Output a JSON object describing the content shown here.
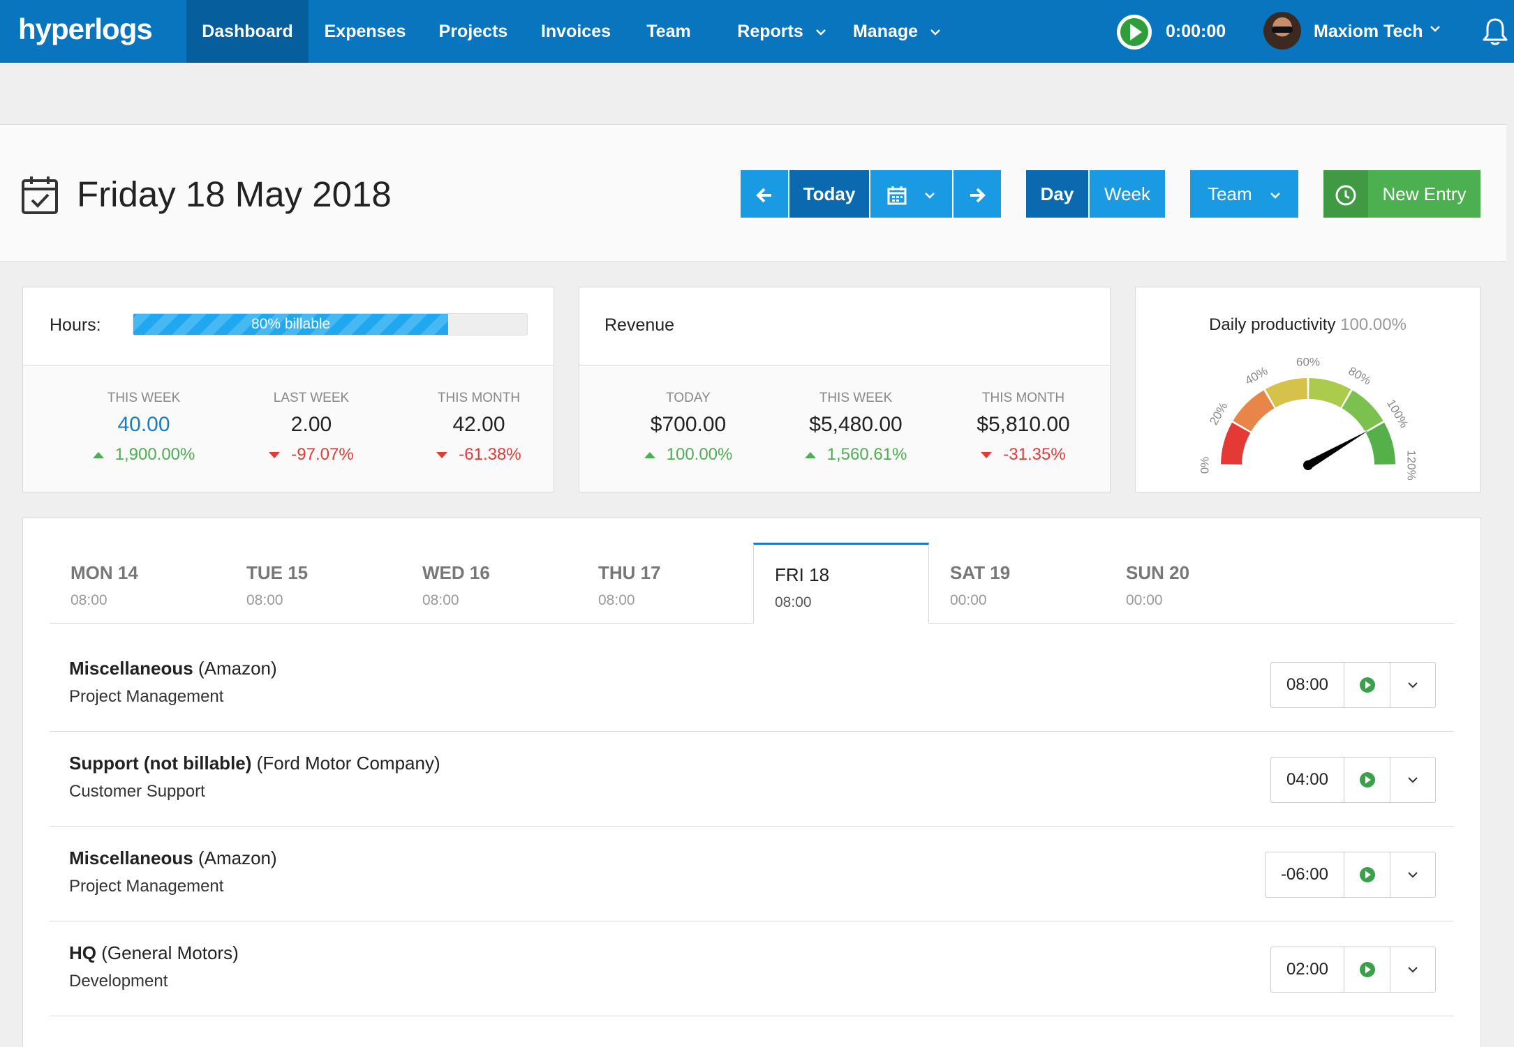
{
  "nav": {
    "brand": "hyperlogs",
    "items": [
      {
        "label": "Dashboard"
      },
      {
        "label": "Expenses"
      },
      {
        "label": "Projects"
      },
      {
        "label": "Invoices"
      },
      {
        "label": "Team"
      },
      {
        "label": "Reports"
      },
      {
        "label": "Manage"
      }
    ],
    "timer": "0:00:00",
    "user_name": "Maxiom Tech"
  },
  "header": {
    "title": "Friday 18 May 2018",
    "today_label": "Today",
    "day_label": "Day",
    "week_label": "Week",
    "team_label": "Team",
    "new_entry_label": "New Entry"
  },
  "hours_card": {
    "label": "Hours:",
    "billable_text": "80% billable",
    "billable_percent": 80,
    "stats": [
      {
        "label": "THIS WEEK",
        "value": "40.00",
        "change": "1,900.00%",
        "direction": "up"
      },
      {
        "label": "LAST WEEK",
        "value": "2.00",
        "change": "-97.07%",
        "direction": "down"
      },
      {
        "label": "THIS MONTH",
        "value": "42.00",
        "change": "-61.38%",
        "direction": "down"
      }
    ]
  },
  "revenue_card": {
    "title": "Revenue",
    "stats": [
      {
        "label": "TODAY",
        "value": "$700.00",
        "change": "100.00%",
        "direction": "up"
      },
      {
        "label": "THIS WEEK",
        "value": "$5,480.00",
        "change": "1,560.61%",
        "direction": "up"
      },
      {
        "label": "THIS MONTH",
        "value": "$5,810.00",
        "change": "-31.35%",
        "direction": "down"
      }
    ]
  },
  "productivity": {
    "title": "Daily productivity",
    "value_text": "100.00%",
    "value": 100,
    "gauge_labels": [
      "0%",
      "20%",
      "40%",
      "60%",
      "80%",
      "100%",
      "120%"
    ]
  },
  "days": [
    {
      "name": "MON 14",
      "hours": "08:00"
    },
    {
      "name": "TUE 15",
      "hours": "08:00"
    },
    {
      "name": "WED 16",
      "hours": "08:00"
    },
    {
      "name": "THU 17",
      "hours": "08:00"
    },
    {
      "name": "FRI 18",
      "hours": "08:00"
    },
    {
      "name": "SAT 19",
      "hours": "00:00"
    },
    {
      "name": "SUN 20",
      "hours": "00:00"
    }
  ],
  "entries": [
    {
      "project": "Miscellaneous",
      "client": "(Amazon)",
      "task": "Project Management",
      "time": "08:00"
    },
    {
      "project": "Support (not billable)",
      "client": "(Ford Motor Company)",
      "task": "Customer Support",
      "time": "04:00"
    },
    {
      "project": "Miscellaneous",
      "client": "(Amazon)",
      "task": "Project Management",
      "time": "-06:00"
    },
    {
      "project": "HQ",
      "client": "(General Motors)",
      "task": "Development",
      "time": "02:00"
    }
  ],
  "colors": {
    "nav_bg": "#0a75bf",
    "accent_blue": "#1b9ae4",
    "green": "#4caf50",
    "red": "#e53935"
  }
}
